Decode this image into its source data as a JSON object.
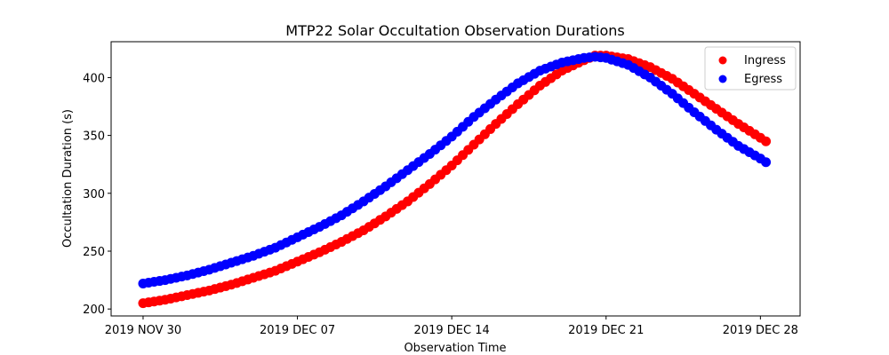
{
  "chart_data": {
    "type": "scatter",
    "title": "MTP22 Solar Occultation Observation Durations",
    "xlabel": "Observation Time",
    "ylabel": "Occultation Duration (s)",
    "x_unit": "days since 2019 NOV 30",
    "xlim": [
      -1.45,
      29.8
    ],
    "ylim": [
      194,
      431
    ],
    "grid": false,
    "legend_position": "top-right",
    "x_ticks": [
      {
        "value": 0,
        "label": "2019 NOV 30"
      },
      {
        "value": 7,
        "label": "2019 DEC 07"
      },
      {
        "value": 14,
        "label": "2019 DEC 14"
      },
      {
        "value": 21,
        "label": "2019 DEC 21"
      },
      {
        "value": 28,
        "label": "2019 DEC 28"
      }
    ],
    "y_ticks": [
      {
        "value": 200,
        "label": "200"
      },
      {
        "value": 250,
        "label": "250"
      },
      {
        "value": 300,
        "label": "300"
      },
      {
        "value": 350,
        "label": "350"
      },
      {
        "value": 400,
        "label": "400"
      }
    ],
    "series": [
      {
        "name": "Ingress",
        "color": "#ff0000",
        "x": [
          0,
          1,
          2,
          3,
          4,
          5,
          6,
          7,
          8,
          9,
          10,
          11,
          12,
          13,
          14,
          15,
          16,
          17,
          18,
          19,
          20,
          20.5,
          21,
          22,
          23,
          24,
          25,
          26,
          27,
          28,
          28.4
        ],
        "y": [
          205,
          208,
          212,
          216,
          221,
          227,
          233,
          241,
          249,
          258,
          268,
          280,
          293,
          308,
          324,
          342,
          360,
          377,
          393,
          406,
          415,
          419,
          419,
          416,
          409,
          399,
          386,
          373,
          360,
          348,
          343
        ]
      },
      {
        "name": "Egress",
        "color": "#0000ff",
        "x": [
          0,
          1,
          2,
          3,
          4,
          5,
          6,
          7,
          8,
          9,
          10,
          11,
          12,
          13,
          14,
          15,
          16,
          17,
          18,
          19,
          20,
          20.5,
          21,
          22,
          23,
          24,
          25,
          26,
          27,
          28,
          28.4
        ],
        "y": [
          222,
          225,
          229,
          234,
          240,
          246,
          253,
          262,
          271,
          281,
          293,
          306,
          320,
          334,
          349,
          366,
          381,
          395,
          406,
          413,
          417,
          418,
          417,
          411,
          400,
          386,
          370,
          355,
          341,
          330,
          325
        ]
      }
    ]
  }
}
